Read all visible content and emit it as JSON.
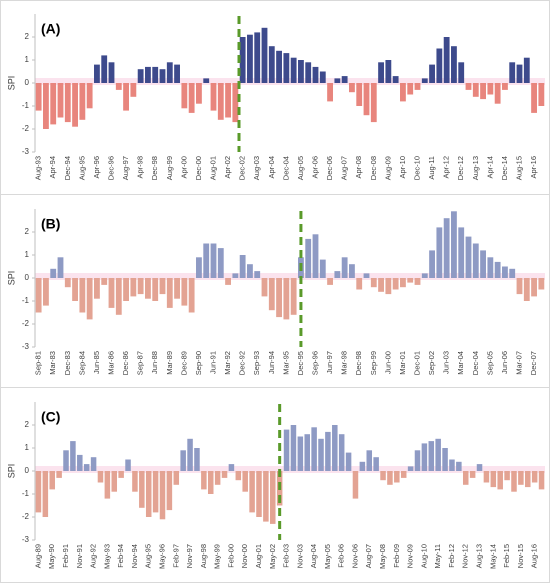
{
  "chart_data": [
    {
      "type": "bar",
      "label": "(A)",
      "ylabel": "SPI",
      "color_positive": "#3d4a8c",
      "color_negative": "#e8857d",
      "categories": [
        "Aug-93",
        null,
        "Apr-94",
        null,
        "Dec-94",
        null,
        "Aug-95",
        null,
        "Apr-96",
        null,
        "Dec-96",
        null,
        "Aug-97",
        null,
        "Apr-98",
        null,
        "Dec-98",
        null,
        "Aug-99",
        null,
        "Apr-00",
        null,
        "Dec-00",
        null,
        "Aug-01",
        null,
        "Apr-02",
        null,
        "Dec-02",
        null,
        "Aug-03",
        null,
        "Apr-04",
        null,
        "Dec-04",
        null,
        "Aug-05",
        null,
        "Apr-06",
        null,
        "Dec-06",
        null,
        "Aug-07",
        null,
        "Apr-08",
        null,
        "Dec-08",
        null,
        "Aug-09",
        null,
        "Apr-10",
        null,
        "Dec-10",
        null,
        "Aug-11",
        null,
        "Apr-12",
        null,
        "Dec-12",
        null,
        "Aug-13",
        null,
        "Apr-14",
        null,
        "Dec-14",
        null,
        "Aug-15",
        null,
        "Apr-16",
        null
      ],
      "values": [
        -1.2,
        -2.0,
        -1.8,
        -1.5,
        -1.7,
        -1.9,
        -1.6,
        -1.1,
        0.8,
        1.2,
        0.9,
        -0.3,
        -1.2,
        -0.6,
        0.6,
        0.7,
        0.7,
        0.6,
        0.9,
        0.8,
        -1.1,
        -1.3,
        -0.9,
        0.2,
        -1.2,
        -1.6,
        -1.5,
        -1.7,
        2.0,
        2.1,
        2.2,
        2.4,
        1.6,
        1.4,
        1.3,
        1.1,
        1.0,
        0.9,
        0.7,
        0.5,
        -0.8,
        0.2,
        0.3,
        -0.4,
        -1.0,
        -1.4,
        -1.7,
        0.9,
        1.0,
        0.3,
        -0.8,
        -0.5,
        -0.3,
        0.2,
        0.8,
        1.5,
        2.0,
        1.6,
        0.9,
        -0.3,
        -0.6,
        -0.7,
        -0.5,
        -0.9,
        -0.3,
        0.9,
        0.8,
        1.1,
        -1.3,
        -1.0
      ],
      "ylim": [
        -3,
        3
      ],
      "yticks": [
        -3,
        -2,
        -1,
        0,
        1,
        2
      ]
    },
    {
      "type": "bar",
      "label": "(B)",
      "ylabel": "SPI",
      "color_positive": "#8e9ac4",
      "color_negative": "#e3a393",
      "categories": [
        "Sep-81",
        null,
        "Mar-83",
        null,
        "Dec-83",
        null,
        "Sep-84",
        null,
        "Jun-85",
        null,
        "Mar-86",
        null,
        "Dec-86",
        null,
        "Sep-87",
        null,
        "Jun-88",
        null,
        "Mar-89",
        null,
        "Dec-89",
        null,
        "Sep-90",
        null,
        "Jun-91",
        null,
        "Mar-92",
        null,
        "Dec-92",
        null,
        "Sep-93",
        null,
        "Jun-94",
        null,
        "Mar-95",
        null,
        "Dec-95",
        null,
        "Sep-96",
        null,
        "Jun-97",
        null,
        "Mar-98",
        null,
        "Dec-98",
        null,
        "Sep-99",
        null,
        "Jun-00",
        null,
        "Mar-01",
        null,
        "Dec-01",
        null,
        "Sep-02",
        null,
        "Jun-03",
        null,
        "Mar-04",
        null,
        "Dec-04",
        null,
        "Sep-05",
        null,
        "Jun-06",
        null,
        "Mar-07",
        null,
        "Dec-07",
        null
      ],
      "values": [
        -1.5,
        -1.2,
        0.4,
        0.9,
        -0.4,
        -1.0,
        -1.5,
        -1.8,
        -0.9,
        -0.3,
        -1.3,
        -1.6,
        -1.0,
        -0.8,
        -0.7,
        -0.9,
        -1.0,
        -0.7,
        -1.3,
        -0.9,
        -1.2,
        -1.5,
        0.9,
        1.5,
        1.5,
        1.3,
        -0.3,
        0.2,
        1.0,
        0.6,
        0.3,
        -0.8,
        -1.4,
        -1.7,
        -1.8,
        -1.6,
        0.9,
        1.7,
        1.9,
        0.8,
        -0.3,
        0.3,
        0.9,
        0.6,
        -0.5,
        0.2,
        -0.4,
        -0.6,
        -0.7,
        -0.5,
        -0.4,
        -0.2,
        -0.3,
        0.2,
        1.2,
        2.2,
        2.6,
        2.9,
        2.2,
        1.8,
        1.5,
        1.2,
        0.9,
        0.7,
        0.5,
        0.4,
        -0.7,
        -1.0,
        -0.8,
        -0.5
      ],
      "ylim": [
        -3,
        3
      ],
      "yticks": [
        -3,
        -2,
        -1,
        0,
        1,
        2
      ]
    },
    {
      "type": "bar",
      "label": "(C)",
      "ylabel": "SPI",
      "color_positive": "#8e9ac4",
      "color_negative": "#e3a393",
      "categories": [
        "Aug-89",
        null,
        "May-90",
        null,
        "Feb-91",
        null,
        "Nov-91",
        null,
        "Aug-92",
        null,
        "May-93",
        null,
        "Feb-94",
        null,
        "Nov-94",
        null,
        "Aug-95",
        null,
        "May-96",
        null,
        "Feb-97",
        null,
        "Nov-97",
        null,
        "Aug-98",
        null,
        "May-99",
        null,
        "Feb-00",
        null,
        "Nov-00",
        null,
        "Aug-01",
        null,
        "May-02",
        null,
        "Feb-03",
        null,
        "Nov-03",
        null,
        "Aug-04",
        null,
        "May-05",
        null,
        "Feb-06",
        null,
        "Nov-06",
        null,
        "Aug-07",
        null,
        "May-08",
        null,
        "Feb-09",
        null,
        "Nov-09",
        null,
        "Aug-10",
        null,
        "May-11",
        null,
        "Feb-12",
        null,
        "Nov-12",
        null,
        "Aug-13",
        null,
        "May-14",
        null,
        "Feb-15",
        null,
        "Nov-15",
        null,
        "Aug-16",
        null
      ],
      "values": [
        -1.8,
        -2.0,
        -0.8,
        -0.3,
        0.9,
        1.3,
        0.7,
        0.3,
        0.6,
        -0.5,
        -1.2,
        -0.9,
        -0.3,
        0.5,
        -0.9,
        -1.6,
        -2.0,
        -1.8,
        -2.1,
        -1.7,
        -0.6,
        0.9,
        1.4,
        1.0,
        -0.8,
        -1.0,
        -0.6,
        -0.3,
        0.3,
        -0.4,
        -0.9,
        -1.8,
        -2.0,
        -2.2,
        -2.3,
        -1.5,
        1.8,
        2.0,
        1.5,
        1.6,
        1.9,
        1.4,
        1.7,
        2.0,
        1.6,
        0.8,
        -1.2,
        0.4,
        0.9,
        0.6,
        -0.4,
        -0.6,
        -0.5,
        -0.3,
        0.2,
        0.9,
        1.2,
        1.3,
        1.4,
        1.0,
        0.5,
        0.4,
        -0.6,
        -0.3,
        0.3,
        -0.5,
        -0.7,
        -0.8,
        -0.4,
        -0.9,
        -0.6,
        -0.7,
        -0.5,
        -0.8
      ],
      "ylim": [
        -3,
        3
      ],
      "yticks": [
        -3,
        -2,
        -1,
        0,
        1,
        2
      ]
    }
  ]
}
